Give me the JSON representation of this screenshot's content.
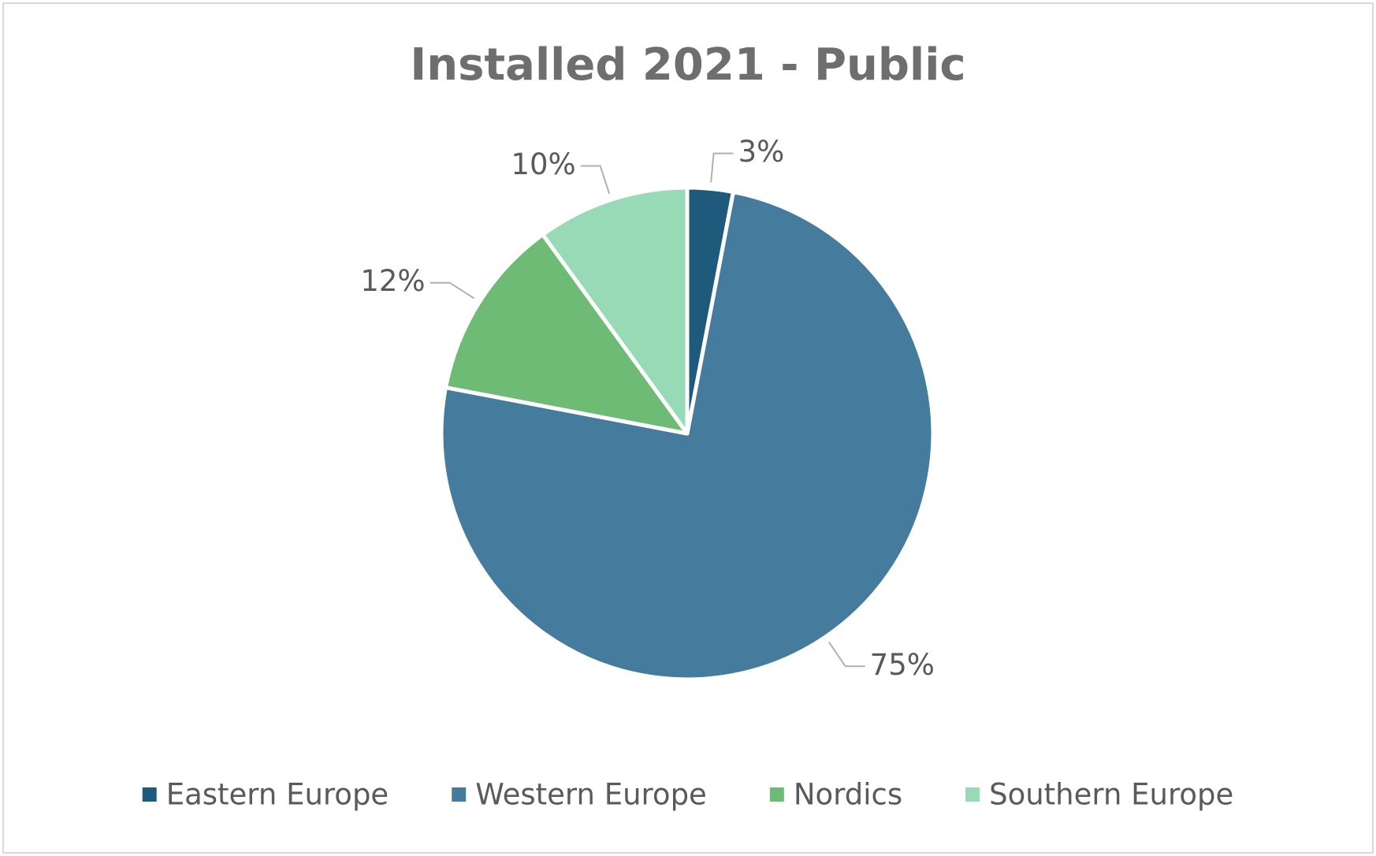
{
  "chart_data": {
    "type": "pie",
    "title": "Installed 2021 - Public",
    "categories": [
      "Eastern Europe",
      "Western Europe",
      "Nordics",
      "Southern Europe"
    ],
    "values": [
      3,
      75,
      12,
      10
    ],
    "value_labels": [
      "3%",
      "75%",
      "12%",
      "10%"
    ],
    "colors": [
      "#1d5a7c",
      "#457c9e",
      "#6dbb74",
      "#98dab6"
    ],
    "legend": "bottom"
  }
}
